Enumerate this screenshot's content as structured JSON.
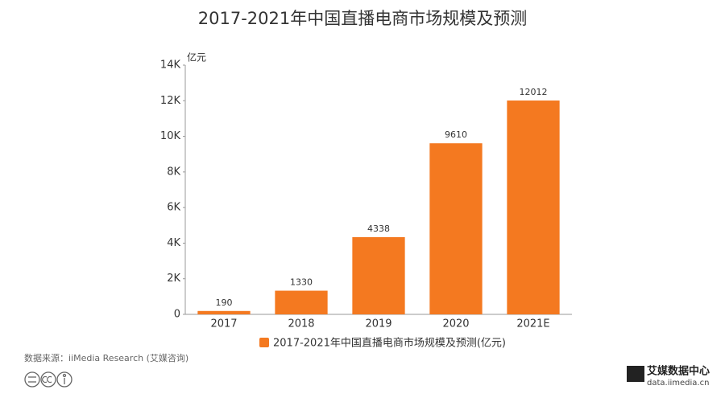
{
  "chart_data": {
    "type": "bar",
    "title": "2017-2021年中国直播电商市场规模及预测",
    "y_unit": "亿元",
    "categories": [
      "2017",
      "2018",
      "2019",
      "2020",
      "2021E"
    ],
    "series": [
      {
        "name": "2017-2021年中国直播电商市场规模及预测(亿元)",
        "color": "#f47920",
        "values": [
          190,
          1330,
          4338,
          9610,
          12012
        ]
      }
    ],
    "ylim": [
      0,
      14000
    ],
    "yticks": [
      0,
      {
        "value": 2000,
        "label": "2K"
      },
      {
        "value": 4000,
        "label": "4K"
      },
      {
        "value": 6000,
        "label": "6K"
      },
      {
        "value": 8000,
        "label": "8K"
      },
      {
        "value": 10000,
        "label": "10K"
      },
      {
        "value": 12000,
        "label": "12K"
      },
      {
        "value": 14000,
        "label": "14K"
      }
    ],
    "grid": false,
    "source": "数据来源：iiMedia Research (艾媒咨询)",
    "logo_text": "艾媒数据中心",
    "logo_url": "data.iimedia.cn"
  }
}
